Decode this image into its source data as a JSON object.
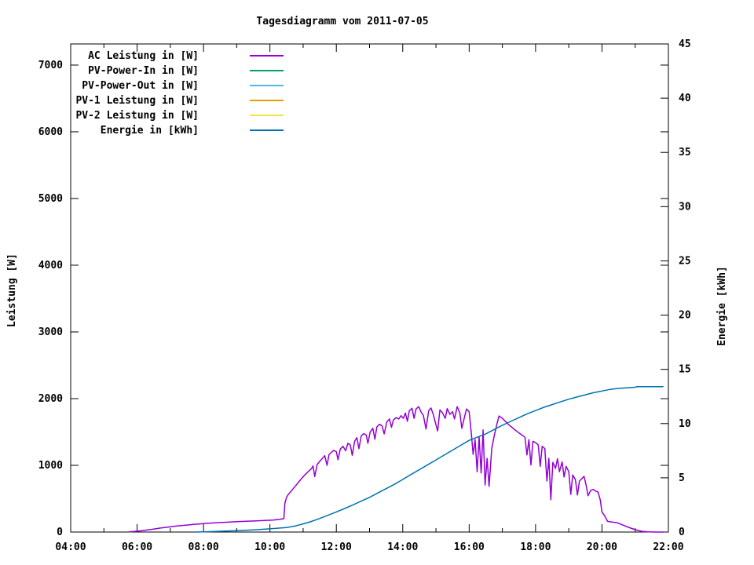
{
  "chart_data": {
    "type": "line",
    "title": "Tagesdiagramm vom 2011-07-05",
    "xlabel": "",
    "ylabel_left": "Leistung [W]",
    "ylabel_right": "Energie [kWh]",
    "x_range_hours": [
      4,
      22
    ],
    "x_major_ticks": [
      {
        "hour": 4,
        "label": "04:00"
      },
      {
        "hour": 6,
        "label": "06:00"
      },
      {
        "hour": 8,
        "label": "08:00"
      },
      {
        "hour": 10,
        "label": "10:00"
      },
      {
        "hour": 12,
        "label": "12:00"
      },
      {
        "hour": 14,
        "label": "14:00"
      },
      {
        "hour": 16,
        "label": "16:00"
      },
      {
        "hour": 18,
        "label": "18:00"
      },
      {
        "hour": 20,
        "label": "20:00"
      },
      {
        "hour": 22,
        "label": "22:00"
      }
    ],
    "x_minor_tick_hours": [
      5,
      7,
      9,
      11,
      13,
      15,
      17,
      19,
      21
    ],
    "y_left_ticks": [
      0,
      1000,
      2000,
      3000,
      4000,
      5000,
      6000,
      7000
    ],
    "y_left_axis_max": 7317,
    "y_right_ticks": [
      0,
      5,
      10,
      15,
      20,
      25,
      30,
      35,
      40,
      45
    ],
    "y_right_axis_max": 45,
    "grid": false,
    "legend_position": "top-left-inside",
    "legend": [
      {
        "label": "AC Leistung in [W]",
        "color": "#9400d3"
      },
      {
        "label": "PV-Power-In in [W]",
        "color": "#009e73"
      },
      {
        "label": "PV-Power-Out in [W]",
        "color": "#56b4e9"
      },
      {
        "label": "PV-1 Leistung in [W]",
        "color": "#e69f00"
      },
      {
        "label": "PV-2 Leistung in [W]",
        "color": "#f0e442"
      },
      {
        "label": "Energie in [kWh]",
        "color": "#0072b2"
      }
    ],
    "series": [
      {
        "name": "AC Leistung in [W]",
        "color": "#9400d3",
        "axis": "left",
        "points": [
          [
            5.75,
            3
          ],
          [
            5.9,
            8
          ],
          [
            6.1,
            18
          ],
          [
            6.3,
            30
          ],
          [
            6.5,
            45
          ],
          [
            6.7,
            60
          ],
          [
            6.9,
            72
          ],
          [
            7.1,
            85
          ],
          [
            7.3,
            95
          ],
          [
            7.5,
            105
          ],
          [
            7.7,
            115
          ],
          [
            7.9,
            122
          ],
          [
            8.1,
            130
          ],
          [
            8.3,
            136
          ],
          [
            8.5,
            142
          ],
          [
            8.7,
            147
          ],
          [
            9.0,
            155
          ],
          [
            9.3,
            162
          ],
          [
            9.6,
            168
          ],
          [
            9.9,
            175
          ],
          [
            10.1,
            180
          ],
          [
            10.3,
            190
          ],
          [
            10.42,
            200
          ],
          [
            10.45,
            430
          ],
          [
            10.5,
            520
          ],
          [
            10.55,
            560
          ],
          [
            10.65,
            620
          ],
          [
            10.75,
            680
          ],
          [
            10.85,
            740
          ],
          [
            10.95,
            800
          ],
          [
            11.05,
            855
          ],
          [
            11.15,
            905
          ],
          [
            11.25,
            950
          ],
          [
            11.3,
            990
          ],
          [
            11.35,
            830
          ],
          [
            11.42,
            1010
          ],
          [
            11.5,
            1060
          ],
          [
            11.58,
            1105
          ],
          [
            11.65,
            1145
          ],
          [
            11.72,
            1000
          ],
          [
            11.78,
            1160
          ],
          [
            11.85,
            1195
          ],
          [
            11.92,
            1225
          ],
          [
            12.0,
            1205
          ],
          [
            12.05,
            1085
          ],
          [
            12.12,
            1245
          ],
          [
            12.2,
            1285
          ],
          [
            12.28,
            1220
          ],
          [
            12.35,
            1330
          ],
          [
            12.42,
            1305
          ],
          [
            12.48,
            1150
          ],
          [
            12.55,
            1360
          ],
          [
            12.62,
            1415
          ],
          [
            12.68,
            1250
          ],
          [
            12.75,
            1440
          ],
          [
            12.82,
            1475
          ],
          [
            12.9,
            1455
          ],
          [
            12.95,
            1330
          ],
          [
            13.02,
            1500
          ],
          [
            13.1,
            1555
          ],
          [
            13.16,
            1390
          ],
          [
            13.22,
            1575
          ],
          [
            13.3,
            1615
          ],
          [
            13.38,
            1590
          ],
          [
            13.44,
            1470
          ],
          [
            13.52,
            1650
          ],
          [
            13.6,
            1695
          ],
          [
            13.66,
            1570
          ],
          [
            13.72,
            1680
          ],
          [
            13.8,
            1715
          ],
          [
            13.88,
            1695
          ],
          [
            13.95,
            1745
          ],
          [
            14.02,
            1705
          ],
          [
            14.08,
            1785
          ],
          [
            14.14,
            1660
          ],
          [
            14.2,
            1820
          ],
          [
            14.28,
            1855
          ],
          [
            14.34,
            1705
          ],
          [
            14.4,
            1845
          ],
          [
            14.48,
            1880
          ],
          [
            14.56,
            1790
          ],
          [
            14.62,
            1750
          ],
          [
            14.7,
            1545
          ],
          [
            14.78,
            1820
          ],
          [
            14.85,
            1860
          ],
          [
            14.92,
            1760
          ],
          [
            15.0,
            1605
          ],
          [
            15.05,
            1515
          ],
          [
            15.12,
            1830
          ],
          [
            15.2,
            1785
          ],
          [
            15.28,
            1705
          ],
          [
            15.34,
            1850
          ],
          [
            15.42,
            1765
          ],
          [
            15.5,
            1805
          ],
          [
            15.56,
            1695
          ],
          [
            15.64,
            1880
          ],
          [
            15.72,
            1785
          ],
          [
            15.78,
            1555
          ],
          [
            15.85,
            1705
          ],
          [
            15.92,
            1845
          ],
          [
            16.0,
            1805
          ],
          [
            16.06,
            1505
          ],
          [
            16.12,
            1165
          ],
          [
            16.18,
            1385
          ],
          [
            16.24,
            905
          ],
          [
            16.3,
            1425
          ],
          [
            16.36,
            885
          ],
          [
            16.42,
            1530
          ],
          [
            16.48,
            705
          ],
          [
            16.54,
            1105
          ],
          [
            16.6,
            685
          ],
          [
            16.68,
            1255
          ],
          [
            16.76,
            1455
          ],
          [
            16.84,
            1625
          ],
          [
            16.9,
            1740
          ],
          [
            17.0,
            1705
          ],
          [
            17.1,
            1655
          ],
          [
            17.2,
            1605
          ],
          [
            17.3,
            1565
          ],
          [
            17.4,
            1525
          ],
          [
            17.5,
            1485
          ],
          [
            17.6,
            1450
          ],
          [
            17.68,
            1420
          ],
          [
            17.74,
            1155
          ],
          [
            17.8,
            1385
          ],
          [
            17.86,
            1005
          ],
          [
            17.92,
            1360
          ],
          [
            18.0,
            1340
          ],
          [
            18.08,
            1305
          ],
          [
            18.14,
            985
          ],
          [
            18.2,
            1285
          ],
          [
            18.28,
            1250
          ],
          [
            18.34,
            765
          ],
          [
            18.4,
            1105
          ],
          [
            18.46,
            485
          ],
          [
            18.52,
            1045
          ],
          [
            18.6,
            955
          ],
          [
            18.66,
            1100
          ],
          [
            18.72,
            905
          ],
          [
            18.8,
            1050
          ],
          [
            18.86,
            825
          ],
          [
            18.92,
            985
          ],
          [
            19.0,
            905
          ],
          [
            19.06,
            565
          ],
          [
            19.12,
            855
          ],
          [
            19.2,
            785
          ],
          [
            19.26,
            555
          ],
          [
            19.32,
            765
          ],
          [
            19.4,
            805
          ],
          [
            19.46,
            835
          ],
          [
            19.52,
            705
          ],
          [
            19.58,
            545
          ],
          [
            19.66,
            625
          ],
          [
            19.74,
            640
          ],
          [
            19.8,
            615
          ],
          [
            19.88,
            600
          ],
          [
            19.95,
            480
          ],
          [
            20.0,
            300
          ],
          [
            20.08,
            245
          ],
          [
            20.17,
            160
          ],
          [
            20.3,
            150
          ],
          [
            20.45,
            140
          ],
          [
            20.6,
            110
          ],
          [
            20.8,
            70
          ],
          [
            21.0,
            35
          ],
          [
            21.2,
            10
          ],
          [
            21.4,
            2
          ],
          [
            21.6,
            0
          ],
          [
            21.85,
            0
          ]
        ]
      },
      {
        "name": "Energie in [kWh]",
        "color": "#0072b2",
        "axis": "right",
        "points": [
          [
            7.75,
            0.0
          ],
          [
            8.0,
            0.02
          ],
          [
            8.5,
            0.07
          ],
          [
            9.0,
            0.12
          ],
          [
            9.5,
            0.2
          ],
          [
            10.0,
            0.3
          ],
          [
            10.5,
            0.42
          ],
          [
            10.75,
            0.55
          ],
          [
            11.0,
            0.75
          ],
          [
            11.25,
            0.98
          ],
          [
            11.5,
            1.25
          ],
          [
            11.75,
            1.55
          ],
          [
            12.0,
            1.85
          ],
          [
            12.25,
            2.17
          ],
          [
            12.5,
            2.5
          ],
          [
            12.75,
            2.85
          ],
          [
            13.0,
            3.2
          ],
          [
            13.25,
            3.6
          ],
          [
            13.5,
            4.0
          ],
          [
            13.75,
            4.4
          ],
          [
            14.0,
            4.85
          ],
          [
            14.25,
            5.3
          ],
          [
            14.5,
            5.75
          ],
          [
            14.75,
            6.2
          ],
          [
            15.0,
            6.65
          ],
          [
            15.25,
            7.1
          ],
          [
            15.5,
            7.55
          ],
          [
            15.75,
            8.0
          ],
          [
            16.0,
            8.45
          ],
          [
            16.25,
            8.75
          ],
          [
            16.5,
            9.05
          ],
          [
            16.75,
            9.45
          ],
          [
            17.0,
            9.85
          ],
          [
            17.25,
            10.2
          ],
          [
            17.5,
            10.55
          ],
          [
            17.75,
            10.9
          ],
          [
            18.0,
            11.2
          ],
          [
            18.25,
            11.5
          ],
          [
            18.5,
            11.75
          ],
          [
            18.75,
            12.0
          ],
          [
            19.0,
            12.25
          ],
          [
            19.25,
            12.45
          ],
          [
            19.5,
            12.65
          ],
          [
            19.75,
            12.85
          ],
          [
            20.0,
            13.0
          ],
          [
            20.25,
            13.15
          ],
          [
            20.5,
            13.25
          ],
          [
            20.75,
            13.3
          ],
          [
            21.0,
            13.35
          ],
          [
            21.05,
            13.4
          ],
          [
            21.25,
            13.4
          ],
          [
            21.5,
            13.4
          ],
          [
            21.85,
            13.4
          ]
        ]
      }
    ]
  }
}
